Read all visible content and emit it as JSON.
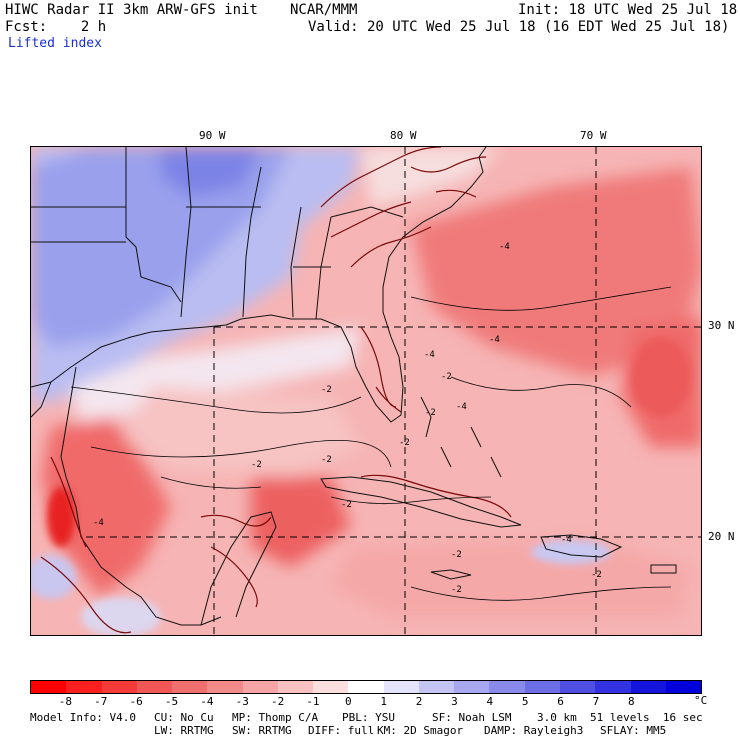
{
  "header": {
    "model": "HIWC Radar II 3km ARW-GFS init",
    "center": "NCAR/MMM",
    "init": "Init: 18 UTC Wed 25 Jul 18",
    "fcst": "Fcst:    2 h",
    "valid": "Valid: 20 UTC Wed 25 Jul 18 (16 EDT Wed 25 Jul 18)",
    "field": "Lifted index"
  },
  "map": {
    "lon_labels": [
      "90 W",
      "80 W",
      "70 W"
    ],
    "lat_labels": [
      "30 N",
      "20 N"
    ],
    "contour_labels": [
      "-4",
      "-4",
      "-4",
      "-2",
      "-2",
      "-4",
      "-2",
      "-2",
      "-2",
      "-4",
      "-2",
      "-2",
      "-2",
      "-2",
      "-4",
      "-2"
    ]
  },
  "colorbar": {
    "ticks": [
      "-8",
      "-7",
      "-6",
      "-5",
      "-4",
      "-3",
      "-2",
      "-1",
      "0",
      "1",
      "2",
      "3",
      "4",
      "5",
      "6",
      "7",
      "8"
    ],
    "unit": "°C",
    "colors": [
      "#ff0000",
      "#fa2020",
      "#f53a3a",
      "#f25757",
      "#f07070",
      "#f28a8a",
      "#f5a5a5",
      "#f8c2c2",
      "#fbdede",
      "#ffffff",
      "#e3e3fb",
      "#c5c5f5",
      "#a8a8f0",
      "#8a8aeb",
      "#6d6de6",
      "#4f4fe3",
      "#3232e0",
      "#1414dd",
      "#0000dd"
    ]
  },
  "footer": {
    "line1_a": "Model Info: V4.0",
    "line1_b": "CU: No Cu",
    "line1_c": "MP: Thomp C/A",
    "line1_d": "PBL: YSU",
    "line1_e": "SF: Noah LSM",
    "line1_f": "3.0 km  51 levels  16 sec",
    "line2_a": "LW: RRTMG",
    "line2_b": "SW: RRTMG",
    "line2_c": "DIFF: full",
    "line2_d": "KM: 2D Smagor",
    "line2_e": "DAMP: Rayleigh3",
    "line2_f": "SFLAY: MM5"
  }
}
